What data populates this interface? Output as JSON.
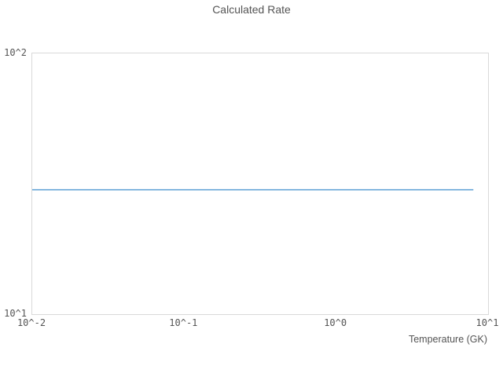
{
  "chart_data": {
    "type": "line",
    "title": "Calculated Rate",
    "xlabel": "Temperature (GK)",
    "ylabel": "",
    "x_scale": "log",
    "y_scale": "log",
    "xlim": [
      0.01,
      10
    ],
    "ylim": [
      10,
      100
    ],
    "grid": false,
    "legend": "none",
    "x_ticks": [
      {
        "value": 0.01,
        "label": "10^-2"
      },
      {
        "value": 0.1,
        "label": "10^-1"
      },
      {
        "value": 1,
        "label": "10^0"
      },
      {
        "value": 10,
        "label": "10^1"
      }
    ],
    "y_ticks": [
      {
        "value": 10,
        "label": "10^1"
      },
      {
        "value": 100,
        "label": "10^2"
      }
    ],
    "series": [
      {
        "name": "calculated-rate",
        "color": "#5b9fd4",
        "x": [
          0.01,
          8
        ],
        "y": [
          30,
          30
        ]
      }
    ]
  },
  "colors": {
    "background": "#ffffff",
    "plot_border": "#d9d9d9",
    "text": "#545454"
  }
}
